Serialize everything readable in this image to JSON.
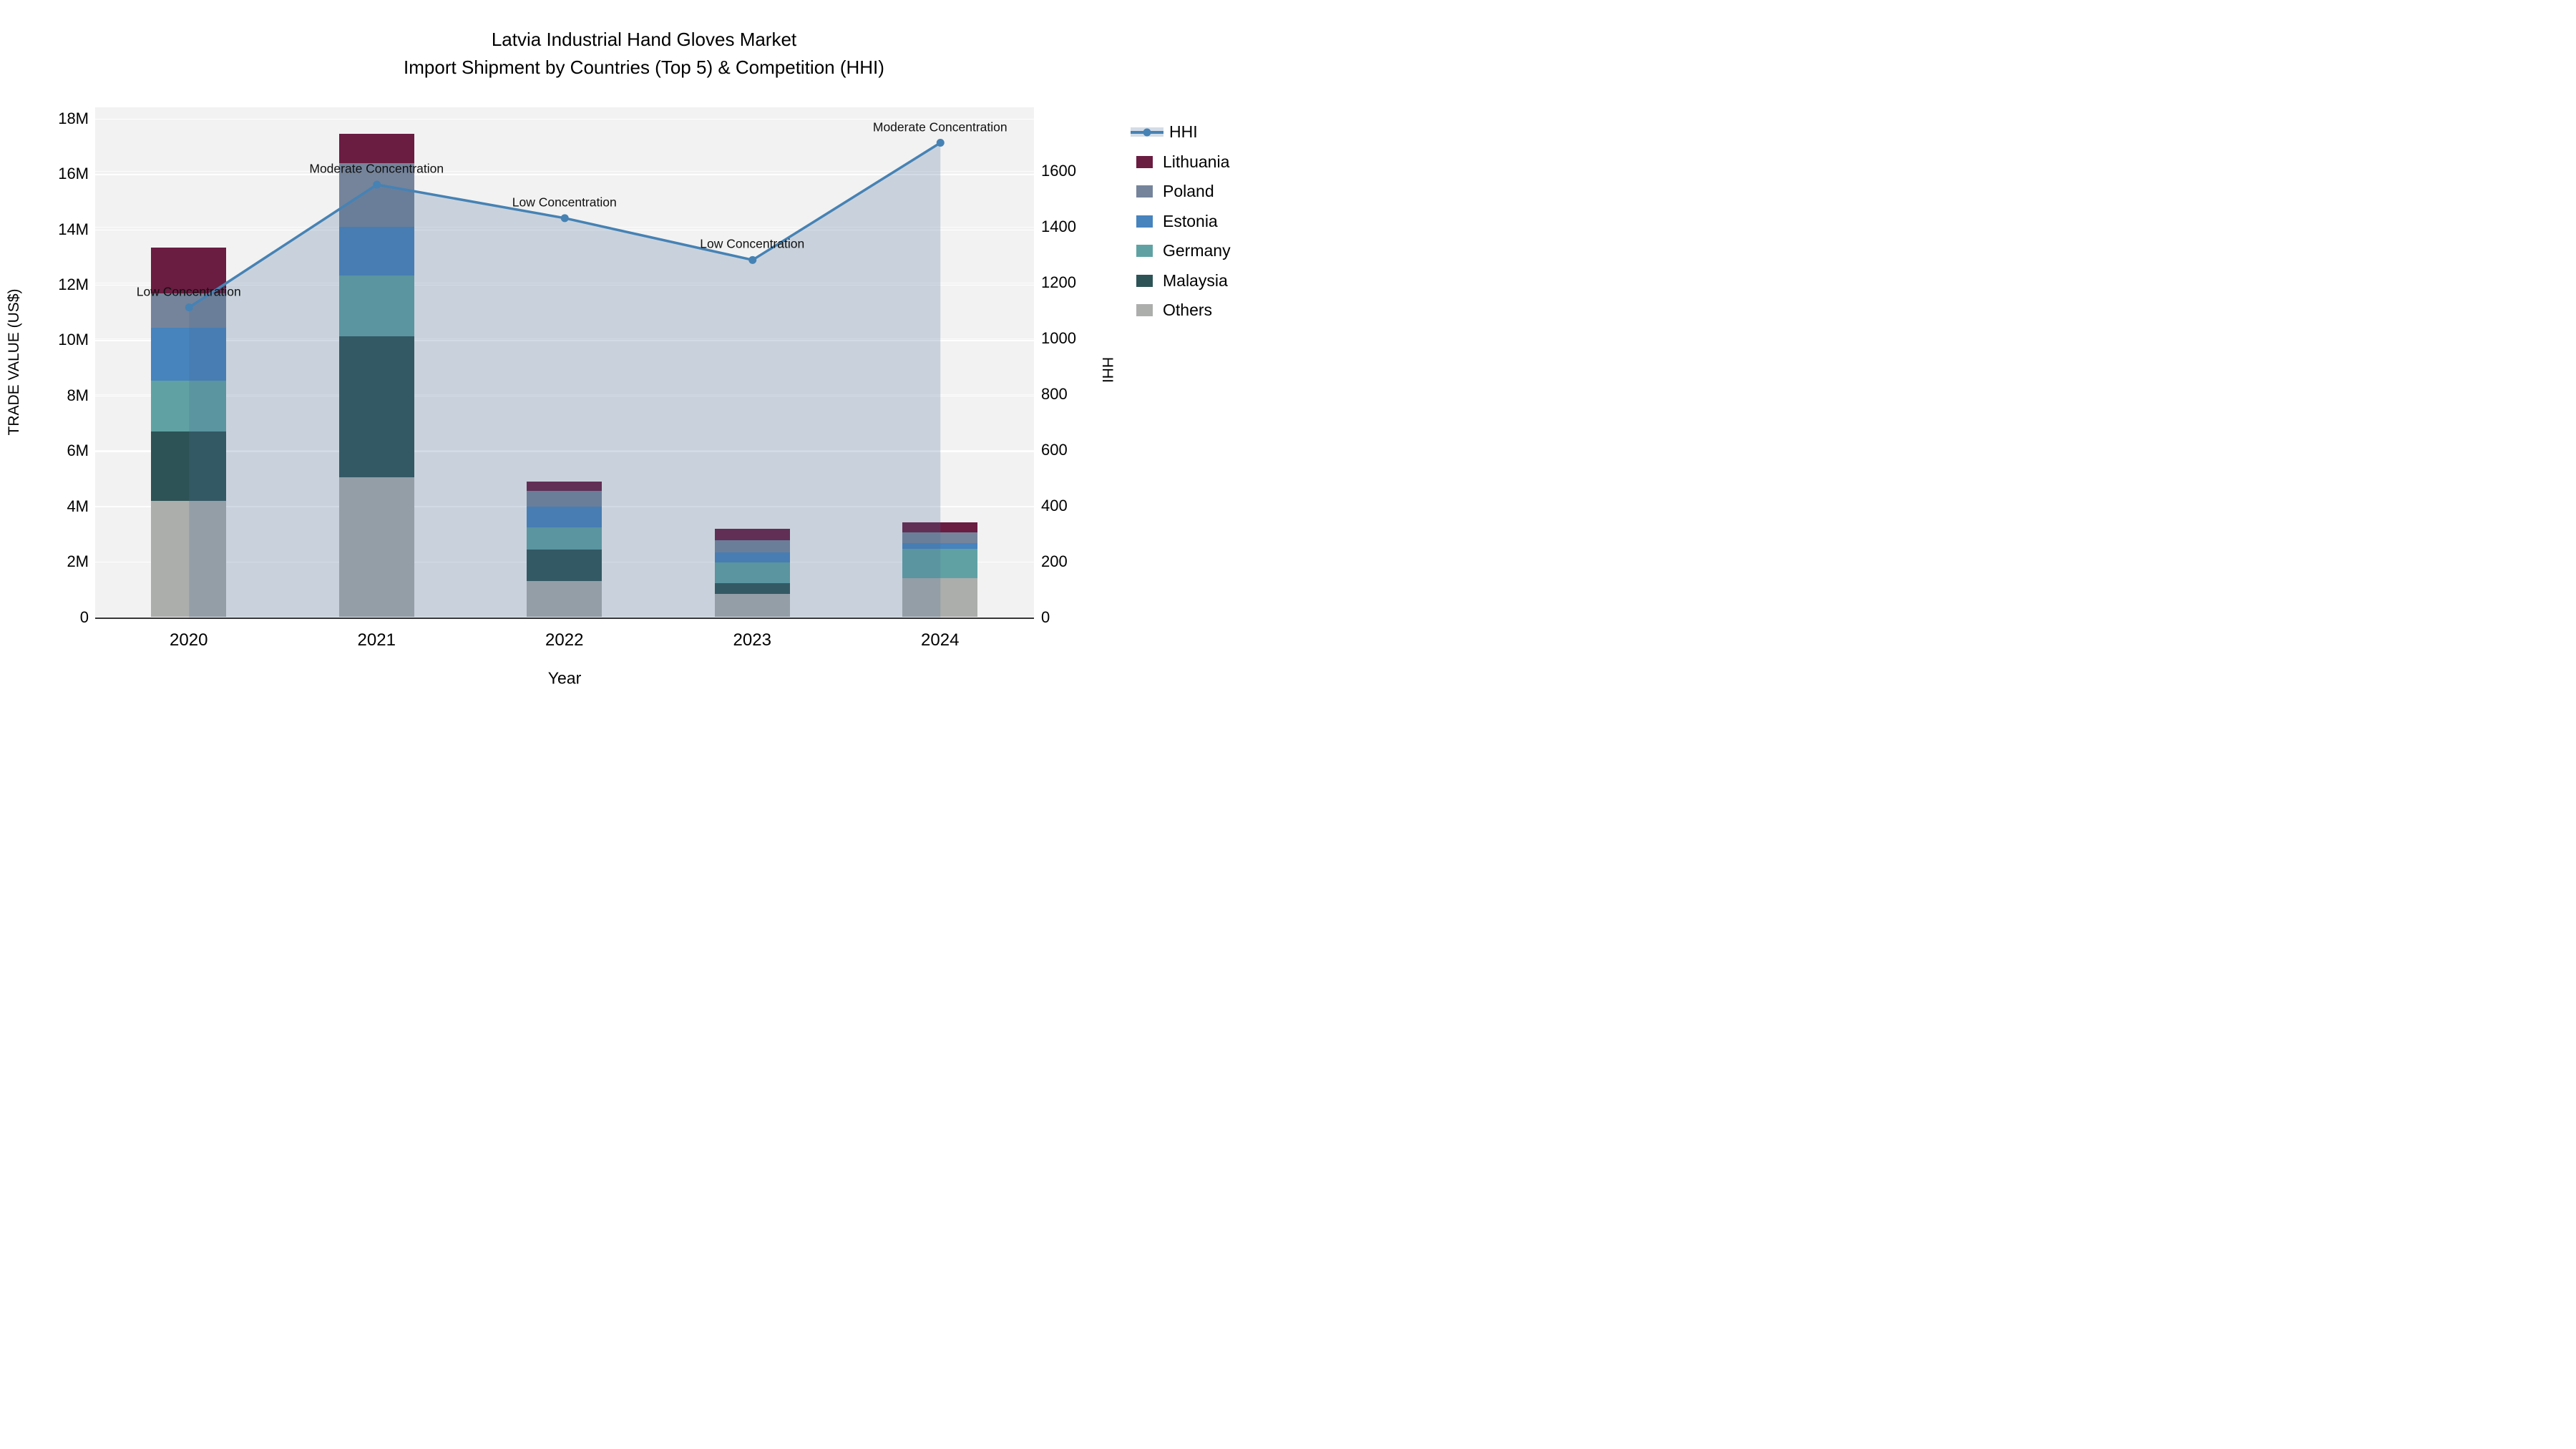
{
  "title": {
    "line1": "Latvia Industrial Hand Gloves Market",
    "line2": "Import Shipment by Countries (Top 5) & Competition (HHI)"
  },
  "axes": {
    "x": {
      "title": "Year",
      "categories": [
        "2020",
        "2021",
        "2022",
        "2023",
        "2024"
      ]
    },
    "y_left": {
      "title": "TRADE VALUE (US$)",
      "tick_labels": [
        "0",
        "2M",
        "4M",
        "6M",
        "8M",
        "10M",
        "12M",
        "14M",
        "16M",
        "18M"
      ],
      "tick_values": [
        0,
        2,
        4,
        6,
        8,
        10,
        12,
        14,
        16,
        18
      ],
      "range_max": 18.41
    },
    "y_right": {
      "title": "HHI",
      "tick_labels": [
        "0",
        "200",
        "400",
        "600",
        "800",
        "1000",
        "1200",
        "1400",
        "1600"
      ],
      "tick_values": [
        0,
        200,
        400,
        600,
        800,
        1000,
        1200,
        1400,
        1600
      ],
      "range_max": 1827
    }
  },
  "chart_data": {
    "type": "stacked-bar+line",
    "categories": [
      "2020",
      "2021",
      "2022",
      "2023",
      "2024"
    ],
    "bar_value_unit": "million US$",
    "series": [
      {
        "name": "Others",
        "color": "#acaeac",
        "values": [
          4.2,
          5.05,
          1.3,
          0.85,
          1.4
        ]
      },
      {
        "name": "Malaysia",
        "color": "#2d5356",
        "values": [
          2.5,
          5.1,
          1.15,
          0.38,
          0.0
        ]
      },
      {
        "name": "Germany",
        "color": "#60a2a4",
        "values": [
          1.85,
          2.2,
          0.8,
          0.75,
          1.06
        ]
      },
      {
        "name": "Estonia",
        "color": "#4783bd",
        "values": [
          1.9,
          1.75,
          0.75,
          0.36,
          0.21
        ]
      },
      {
        "name": "Poland",
        "color": "#75849b",
        "values": [
          1.25,
          2.3,
          0.55,
          0.44,
          0.38
        ]
      },
      {
        "name": "Lithuania",
        "color": "#6a1c41",
        "values": [
          1.65,
          1.05,
          0.35,
          0.4,
          0.37
        ]
      }
    ],
    "bar_totals": [
      13.35,
      17.45,
      4.9,
      3.18,
      3.42
    ],
    "line_series": {
      "name": "HHI",
      "color": "#4682b4",
      "fill_color": "rgba(70,110,150,0.24)",
      "values": [
        1110,
        1550,
        1430,
        1280,
        1700
      ]
    },
    "annotations": [
      {
        "x": "2020",
        "text": "Low Concentration"
      },
      {
        "x": "2021",
        "text": "Moderate Concentration"
      },
      {
        "x": "2022",
        "text": "Low Concentration"
      },
      {
        "x": "2023",
        "text": "Low Concentration"
      },
      {
        "x": "2024",
        "text": "Moderate Concentration"
      }
    ],
    "legend_position": "right",
    "grid": true
  },
  "legend": {
    "items": [
      {
        "label": "HHI",
        "type": "line",
        "color": "#4682b4"
      },
      {
        "label": "Lithuania",
        "type": "swatch",
        "color": "#6a1c41"
      },
      {
        "label": "Poland",
        "type": "swatch",
        "color": "#75849b"
      },
      {
        "label": "Estonia",
        "type": "swatch",
        "color": "#4783bd"
      },
      {
        "label": "Germany",
        "type": "swatch",
        "color": "#60a2a4"
      },
      {
        "label": "Malaysia",
        "type": "swatch",
        "color": "#2d5356"
      },
      {
        "label": "Others",
        "type": "swatch",
        "color": "#acaeac"
      }
    ]
  },
  "colors": {
    "plot_bg": "#f2f2f2",
    "page_bg": "#ffffff",
    "axis_line": "#363636",
    "text": "#000000"
  }
}
